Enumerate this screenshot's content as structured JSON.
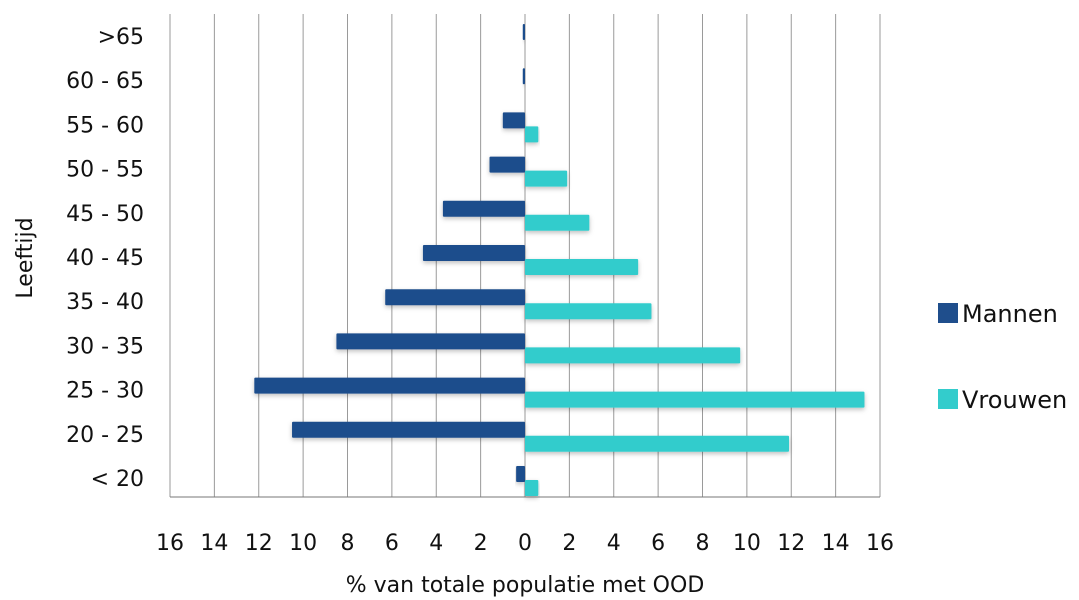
{
  "chart_data": {
    "type": "bar",
    "orientation": "horizontal",
    "title": "",
    "xlabel": "% van totale populatie met OOD",
    "ylabel": "Leeftijd",
    "categories": [
      ">65",
      "60 - 65",
      "55 - 60",
      "50 - 55",
      "45 - 50",
      "40 - 45",
      "35 - 40",
      "30 - 35",
      "25 - 30",
      "20 - 25",
      "< 20"
    ],
    "x_ticks": [
      "16",
      "14",
      "12",
      "10",
      "8",
      "6",
      "4",
      "2",
      "0",
      "2",
      "4",
      "6",
      "8",
      "10",
      "12",
      "14",
      "16"
    ],
    "xlim": [
      -16,
      16
    ],
    "grid": true,
    "legend_position": "right",
    "series": [
      {
        "name": "Mannen",
        "color": "#1f4e8c",
        "side": "left",
        "values": [
          0.1,
          0.1,
          1.0,
          1.6,
          3.7,
          4.6,
          6.3,
          8.5,
          12.2,
          10.5,
          0.4
        ]
      },
      {
        "name": "Vrouwen",
        "color": "#33cccc",
        "side": "right",
        "values": [
          0,
          0,
          0.6,
          1.9,
          2.9,
          5.1,
          5.7,
          9.7,
          15.3,
          11.9,
          0.6
        ]
      }
    ]
  }
}
